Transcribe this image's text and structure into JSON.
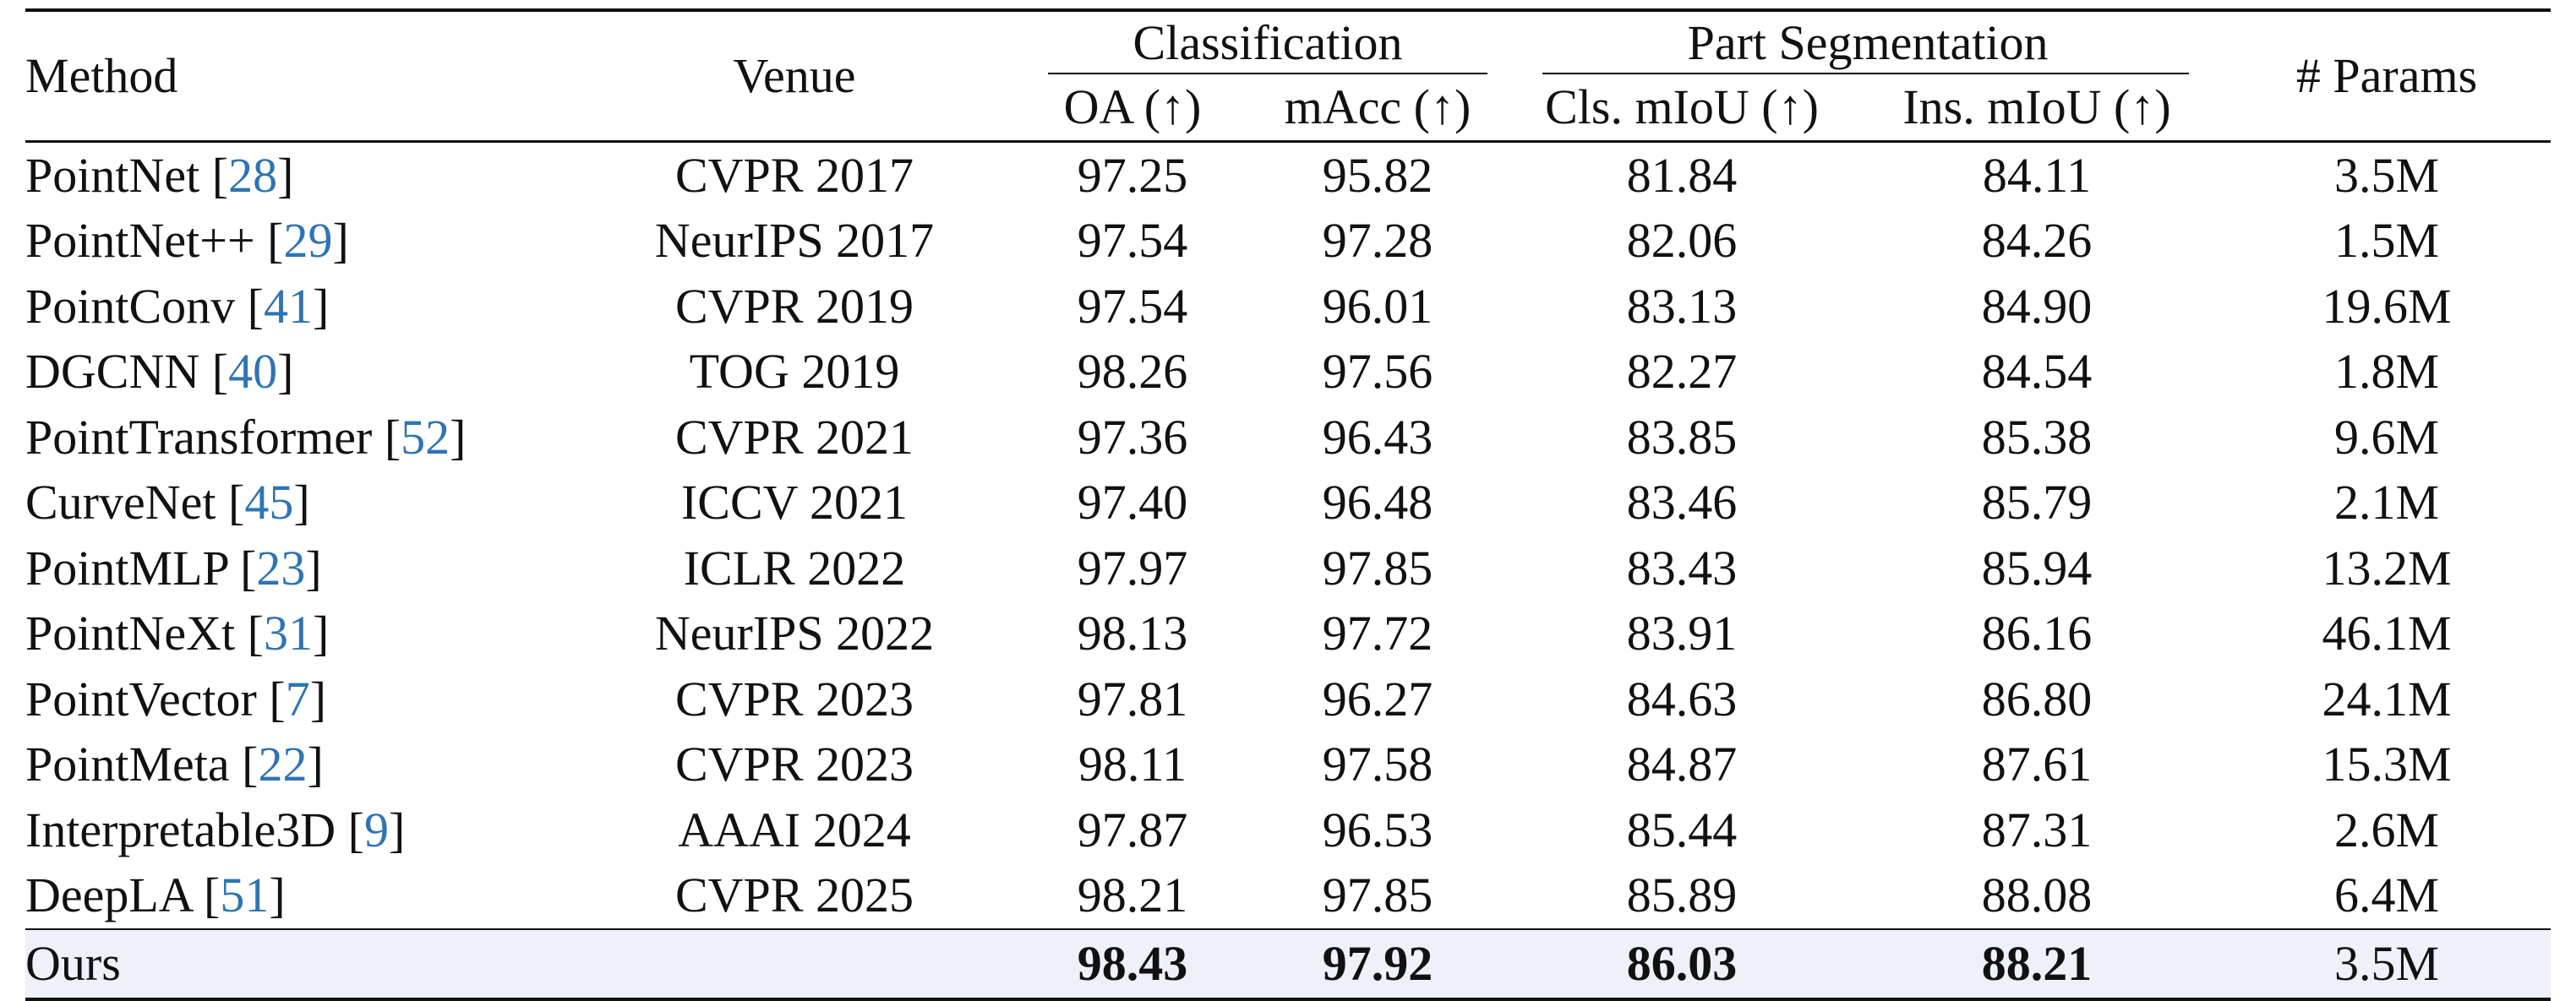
{
  "header": {
    "method": "Method",
    "venue": "Venue",
    "classification": "Classification",
    "part_segmentation": "Part Segmentation",
    "params": "# Params",
    "oa": "OA (↑)",
    "macc": "mAcc (↑)",
    "cls_miou": "Cls. mIoU (↑)",
    "ins_miou": "Ins. mIoU (↑)"
  },
  "rows": [
    {
      "method": "PointNet",
      "cite": "28",
      "venue": "CVPR 2017",
      "oa": "97.25",
      "macc": "95.82",
      "cls_miou": "81.84",
      "ins_miou": "84.11",
      "params": "3.5M"
    },
    {
      "method": "PointNet++",
      "cite": "29",
      "venue": "NeurIPS 2017",
      "oa": "97.54",
      "macc": "97.28",
      "cls_miou": "82.06",
      "ins_miou": "84.26",
      "params": "1.5M"
    },
    {
      "method": "PointConv",
      "cite": "41",
      "venue": "CVPR 2019",
      "oa": "97.54",
      "macc": "96.01",
      "cls_miou": "83.13",
      "ins_miou": "84.90",
      "params": "19.6M"
    },
    {
      "method": "DGCNN",
      "cite": "40",
      "venue": "TOG 2019",
      "oa": "98.26",
      "macc": "97.56",
      "cls_miou": "82.27",
      "ins_miou": "84.54",
      "params": "1.8M"
    },
    {
      "method": "PointTransformer",
      "cite": "52",
      "venue": "CVPR 2021",
      "oa": "97.36",
      "macc": "96.43",
      "cls_miou": "83.85",
      "ins_miou": "85.38",
      "params": "9.6M"
    },
    {
      "method": "CurveNet",
      "cite": "45",
      "venue": "ICCV 2021",
      "oa": "97.40",
      "macc": "96.48",
      "cls_miou": "83.46",
      "ins_miou": "85.79",
      "params": "2.1M"
    },
    {
      "method": "PointMLP",
      "cite": "23",
      "venue": "ICLR 2022",
      "oa": "97.97",
      "macc": "97.85",
      "cls_miou": "83.43",
      "ins_miou": "85.94",
      "params": "13.2M"
    },
    {
      "method": "PointNeXt",
      "cite": "31",
      "venue": "NeurIPS 2022",
      "oa": "98.13",
      "macc": "97.72",
      "cls_miou": "83.91",
      "ins_miou": "86.16",
      "params": "46.1M"
    },
    {
      "method": "PointVector",
      "cite": "7",
      "venue": "CVPR 2023",
      "oa": "97.81",
      "macc": "96.27",
      "cls_miou": "84.63",
      "ins_miou": "86.80",
      "params": "24.1M"
    },
    {
      "method": "PointMeta",
      "cite": "22",
      "venue": "CVPR 2023",
      "oa": "98.11",
      "macc": "97.58",
      "cls_miou": "84.87",
      "ins_miou": "87.61",
      "params": "15.3M"
    },
    {
      "method": "Interpretable3D",
      "cite": "9",
      "venue": "AAAI 2024",
      "oa": "97.87",
      "macc": "96.53",
      "cls_miou": "85.44",
      "ins_miou": "87.31",
      "params": "2.6M"
    },
    {
      "method": "DeepLA",
      "cite": "51",
      "venue": "CVPR 2025",
      "oa": "98.21",
      "macc": "97.85",
      "cls_miou": "85.89",
      "ins_miou": "88.08",
      "params": "6.4M"
    }
  ],
  "ours": {
    "method": "Ours",
    "venue": "",
    "oa": "98.43",
    "macc": "97.92",
    "cls_miou": "86.03",
    "ins_miou": "88.21",
    "params": "3.5M"
  },
  "colors": {
    "citation": "#2f74b3",
    "highlight_row": "#eef0fa",
    "rules": "#111111"
  }
}
